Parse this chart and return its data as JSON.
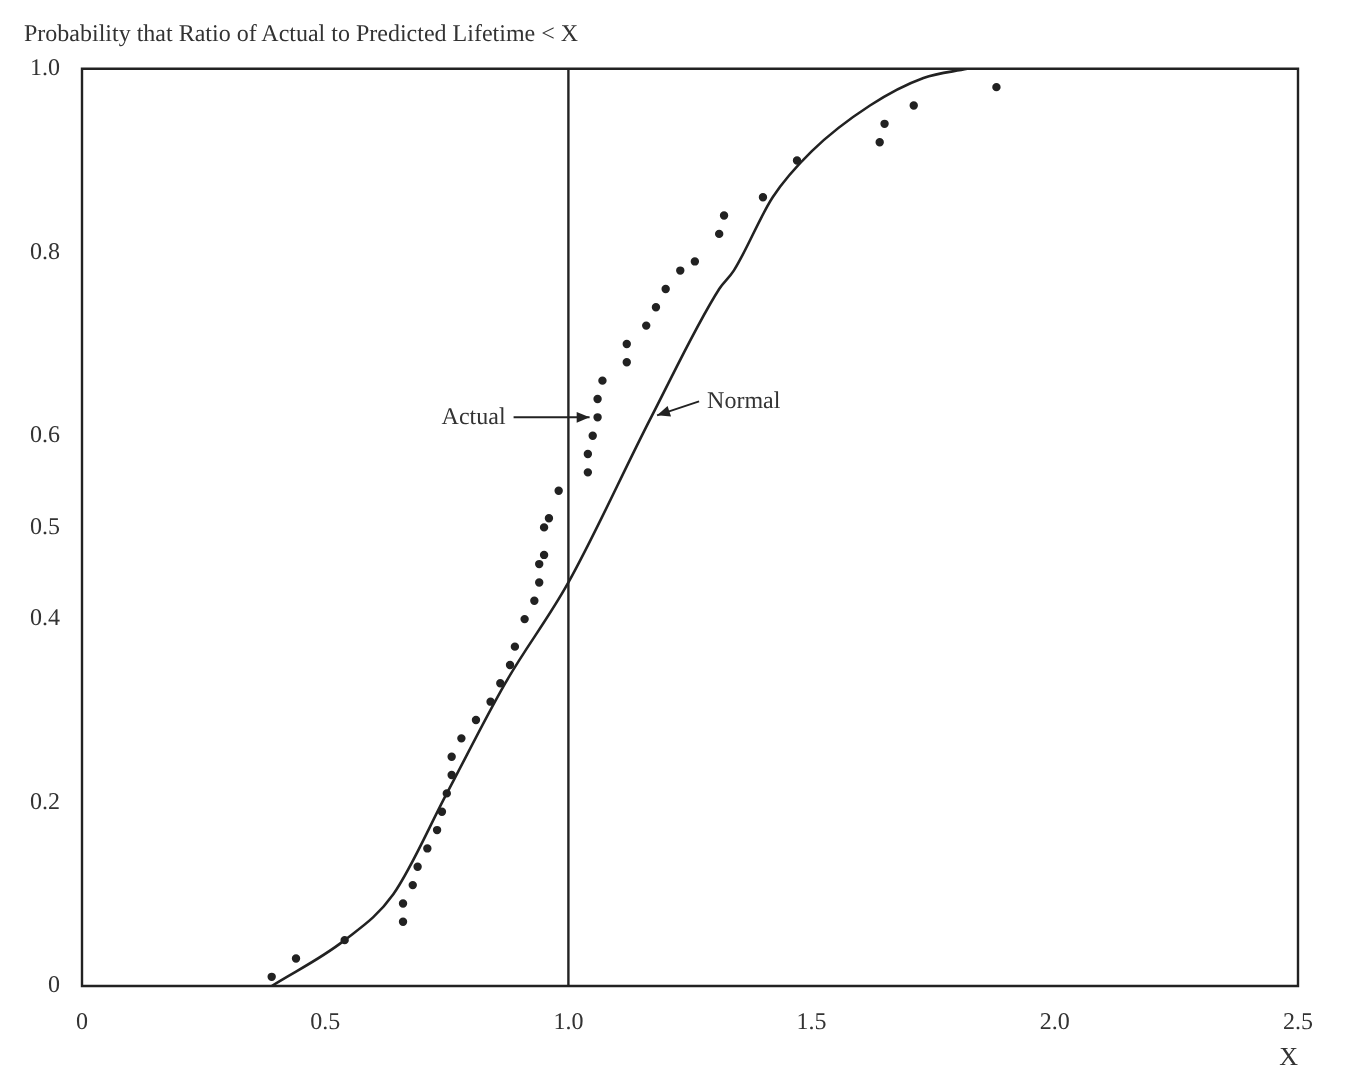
{
  "chart_data": {
    "type": "scatter",
    "title": "Probability that Ratio of Actual to Predicted Lifetime < X",
    "xlabel": "X",
    "series": [
      {
        "name": "Actual",
        "color": "#222222",
        "marker": "circle",
        "x": [
          0.39,
          0.44,
          0.54,
          0.66,
          0.66,
          0.68,
          0.69,
          0.71,
          0.73,
          0.74,
          0.75,
          0.76,
          0.76,
          0.78,
          0.81,
          0.84,
          0.86,
          0.88,
          0.89,
          0.91,
          0.93,
          0.94,
          0.94,
          0.95,
          0.95,
          0.96,
          0.98,
          1.04,
          1.04,
          1.05,
          1.06,
          1.06,
          1.07,
          1.12,
          1.12,
          1.16,
          1.18,
          1.2,
          1.23,
          1.26,
          1.31,
          1.32,
          1.4,
          1.47,
          1.64,
          1.65,
          1.71,
          1.88
        ],
        "values": [
          0.01,
          0.03,
          0.05,
          0.07,
          0.09,
          0.11,
          0.13,
          0.15,
          0.17,
          0.19,
          0.21,
          0.23,
          0.25,
          0.27,
          0.29,
          0.31,
          0.33,
          0.35,
          0.37,
          0.4,
          0.42,
          0.44,
          0.46,
          0.47,
          0.5,
          0.51,
          0.54,
          0.56,
          0.58,
          0.6,
          0.62,
          0.64,
          0.66,
          0.68,
          0.7,
          0.72,
          0.74,
          0.76,
          0.78,
          0.79,
          0.82,
          0.84,
          0.86,
          0.9,
          0.92,
          0.94,
          0.96,
          0.98
        ]
      },
      {
        "name": "Normal",
        "type": "line",
        "color": "#222222",
        "marker": "none",
        "line_style": "solid",
        "x": [
          0.39,
          0.54,
          0.64,
          0.75,
          0.87,
          1.0,
          1.17,
          1.31,
          1.34,
          1.42,
          1.5,
          1.62,
          1.73,
          1.82
        ],
        "values": [
          0,
          0.05,
          0.1,
          0.21,
          0.33,
          0.44,
          0.62,
          0.76,
          0.78,
          0.86,
          0.91,
          0.96,
          0.99,
          1.0
        ]
      }
    ],
    "xlim": [
      0,
      2.5
    ],
    "ylim": [
      0,
      1
    ],
    "xticks": [
      0,
      {
        "value": 0.5,
        "label": "0.5"
      },
      {
        "value": 1,
        "label": "1.0"
      },
      {
        "value": 1.5,
        "label": "1.5"
      },
      {
        "value": 2,
        "label": "2.0"
      },
      {
        "value": 2.5,
        "label": "2.5"
      }
    ],
    "yticks": [
      0,
      {
        "value": 0.2,
        "label": "0.2"
      },
      {
        "value": 0.4,
        "label": "0.4"
      },
      {
        "value": 0.5,
        "label": "0.5"
      },
      {
        "value": 0.6,
        "label": "0.6"
      },
      {
        "value": 0.8,
        "label": "0.8"
      },
      {
        "value": 1,
        "label": "1.0"
      }
    ],
    "ref_lines": [
      {
        "axis": "x",
        "value": 1,
        "color": "#222222",
        "line_style": "solid"
      }
    ],
    "grid": false
  }
}
